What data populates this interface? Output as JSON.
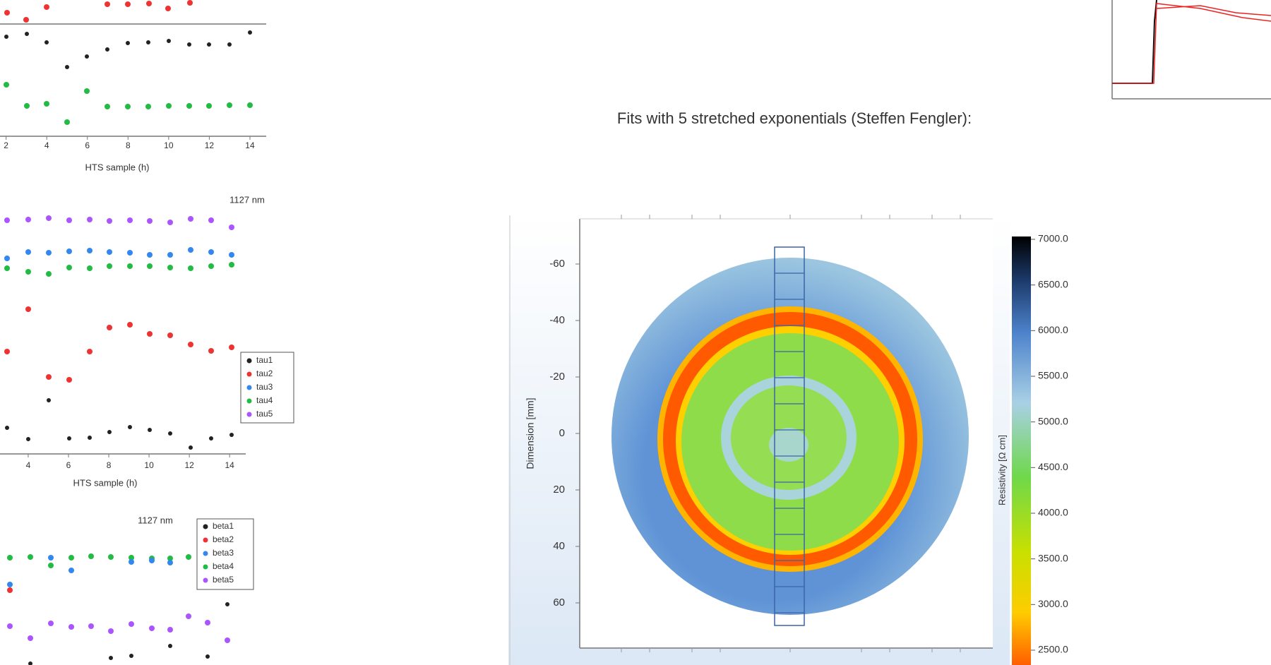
{
  "heading": "Fits with 5 stretched exponentials (Steffen Fengler):",
  "left_figures": [
    {
      "xlim": [
        1.7,
        14.8
      ],
      "xticks": [
        2,
        4,
        6,
        8,
        10,
        12,
        14
      ],
      "x_label": "HTS sample (h)"
    },
    {
      "title": "1127 nm",
      "legend": [
        "tau1",
        "tau2",
        "tau3",
        "tau4",
        "tau5"
      ],
      "xlim": [
        2.6,
        14.8
      ],
      "xticks": [
        4,
        6,
        8,
        10,
        12,
        14
      ],
      "x_label": "HTS sample (h)"
    },
    {
      "title": "1127 nm",
      "legend": [
        "beta1",
        "beta2",
        "beta3",
        "beta4",
        "beta5"
      ]
    }
  ],
  "wafer_map": {
    "y_label": "Dimension [mm]",
    "ylim": [
      -76,
      76
    ],
    "yticks": [
      -60,
      -40,
      -20,
      0,
      20,
      40,
      60
    ],
    "colorbar": {
      "label": "Resistivity [Ω cm]",
      "lim": [
        2500,
        7000
      ],
      "ticks": [
        {
          "value": 7000,
          "label": "7000.0"
        },
        {
          "value": 6500,
          "label": "6500.0"
        },
        {
          "value": 6000,
          "label": "6000.0"
        },
        {
          "value": 5500,
          "label": "5500.0"
        },
        {
          "value": 5000,
          "label": "5000.0"
        },
        {
          "value": 4500,
          "label": "4500.0"
        },
        {
          "value": 4000,
          "label": "4000.0"
        },
        {
          "value": 3500,
          "label": "3500.0"
        },
        {
          "value": 3000,
          "label": "3000.0"
        },
        {
          "value": 2500,
          "label": "2500.0"
        }
      ]
    }
  }
}
